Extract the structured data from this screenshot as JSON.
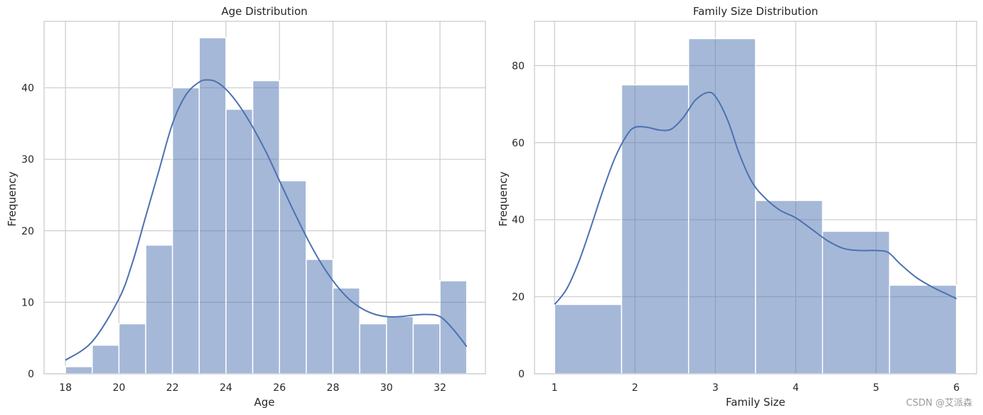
{
  "chart_data": [
    {
      "type": "bar",
      "subtype": "histogram_with_kde",
      "title": "Age Distribution",
      "xlabel": "Age",
      "ylabel": "Frequency",
      "xlim": [
        17.2,
        33.7
      ],
      "ylim": [
        0,
        49.3
      ],
      "xticks": [
        18,
        20,
        22,
        24,
        26,
        28,
        30,
        32
      ],
      "yticks": [
        0,
        10,
        20,
        30,
        40
      ],
      "grid": true,
      "bin_edges": [
        18,
        19,
        20,
        21,
        22,
        23,
        24,
        25,
        26,
        27,
        28,
        29,
        30,
        31,
        32,
        33
      ],
      "values": [
        1,
        4,
        7,
        18,
        40,
        47,
        37,
        41,
        27,
        16,
        12,
        7,
        8,
        7,
        13
      ],
      "kde": {
        "x": [
          18,
          19,
          20,
          20.5,
          21,
          21.5,
          22,
          22.5,
          23,
          23.3,
          23.6,
          24,
          24.5,
          25,
          25.5,
          26,
          26.5,
          27,
          27.5,
          28,
          28.5,
          29,
          29.5,
          30,
          30.5,
          31,
          31.5,
          32,
          32.5,
          33
        ],
        "y": [
          1.9,
          4.5,
          10.5,
          15.5,
          22,
          28.5,
          35,
          39,
          40.8,
          41.1,
          40.9,
          39.8,
          37.5,
          34.5,
          31,
          27,
          23,
          19.2,
          15.8,
          13,
          10.8,
          9.3,
          8.4,
          8,
          8,
          8.2,
          8.3,
          8,
          6.2,
          3.8
        ]
      }
    },
    {
      "type": "bar",
      "subtype": "histogram_with_kde",
      "title": "Family Size Distribution",
      "xlabel": "Family Size",
      "ylabel": "Frequency",
      "xlim": [
        0.75,
        6.25
      ],
      "ylim": [
        0,
        91.5
      ],
      "xticks": [
        1,
        2,
        3,
        4,
        5,
        6
      ],
      "yticks": [
        0,
        20,
        40,
        60,
        80
      ],
      "grid": true,
      "bin_edges": [
        1,
        1.8333,
        2.6667,
        3.5,
        4.3333,
        5.1667,
        6
      ],
      "values": [
        18,
        75,
        87,
        45,
        37,
        23
      ],
      "kde": {
        "x": [
          1,
          1.15,
          1.3,
          1.45,
          1.6,
          1.75,
          1.9,
          2.0,
          2.15,
          2.3,
          2.45,
          2.6,
          2.75,
          2.9,
          3.0,
          3.15,
          3.3,
          3.45,
          3.6,
          3.8,
          4.0,
          4.2,
          4.4,
          4.6,
          4.8,
          5.0,
          5.15,
          5.3,
          5.5,
          5.7,
          5.85,
          6.0
        ],
        "y": [
          18,
          22,
          29,
          38,
          47.5,
          56,
          62,
          64,
          64,
          63.3,
          63.5,
          66.5,
          71,
          73,
          72,
          66,
          57,
          50,
          46,
          42.5,
          40.5,
          37.5,
          34.5,
          32.5,
          32,
          32,
          31.5,
          28.5,
          25,
          22.5,
          21,
          19.5
        ]
      }
    }
  ],
  "watermark": "CSDN @艾派森"
}
